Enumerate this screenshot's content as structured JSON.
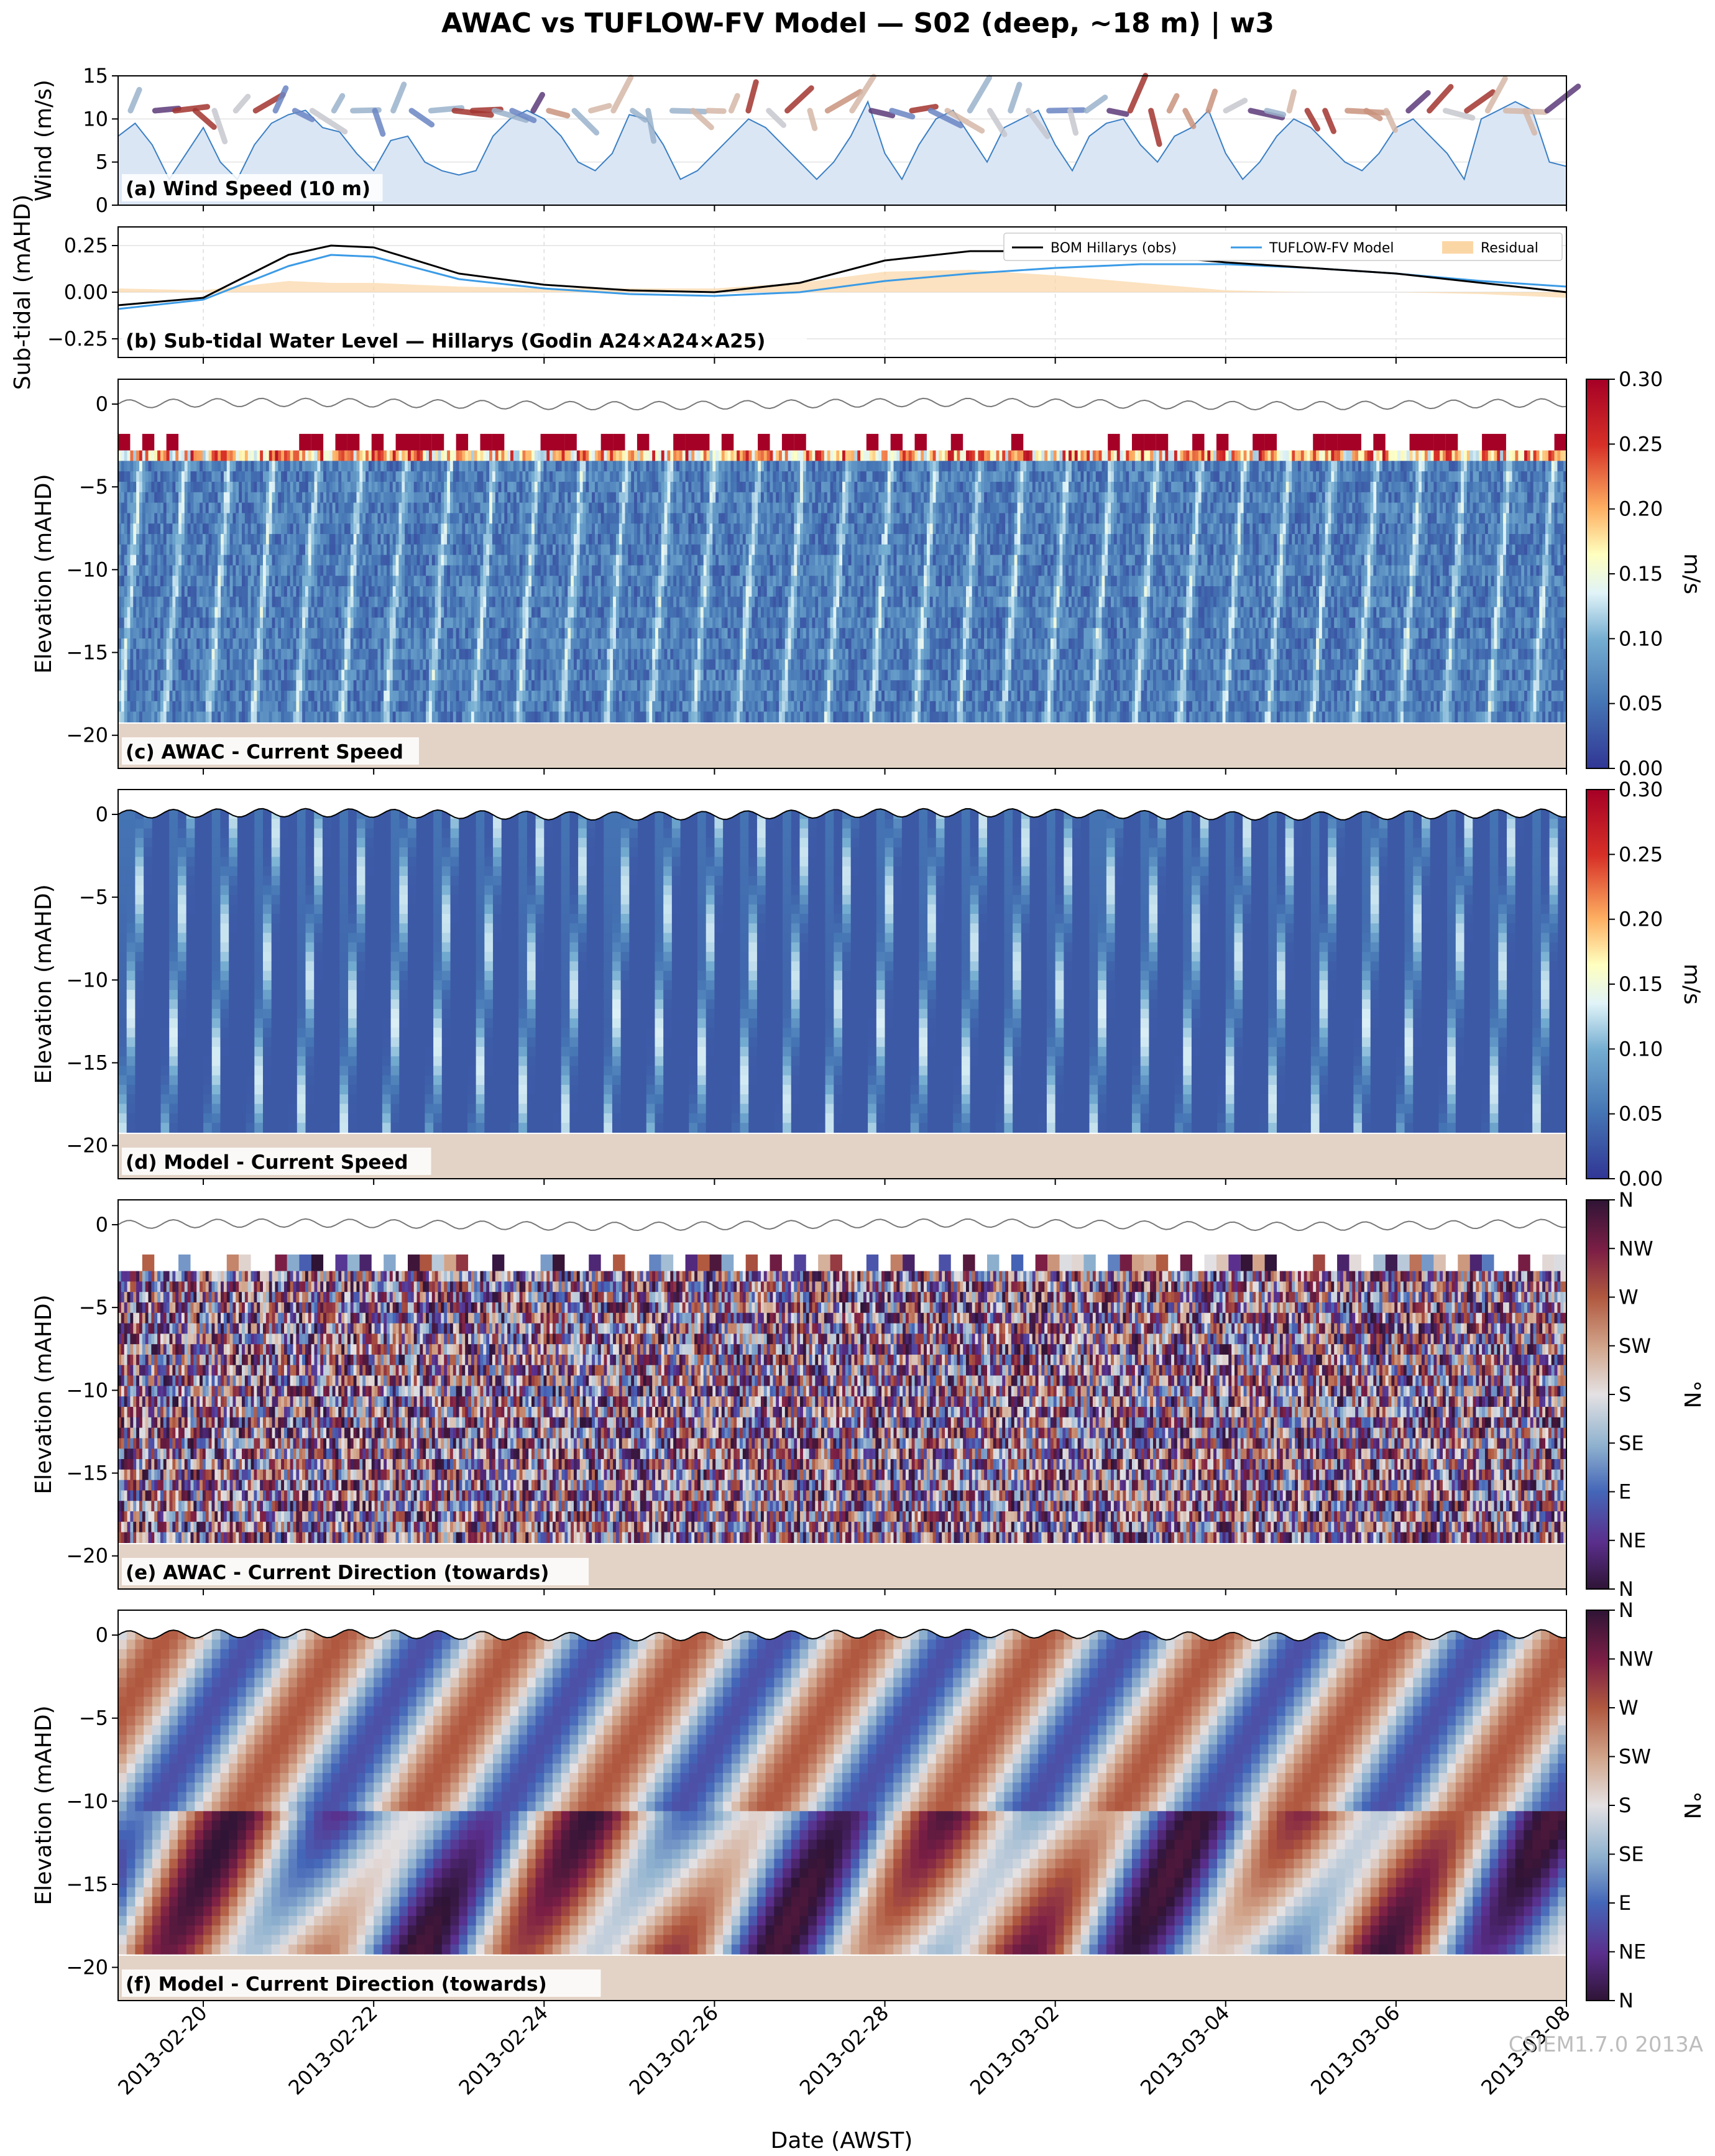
{
  "title": "AWAC vs TUFLOW-FV Model — S02 (deep, ~18 m) | w3",
  "x_axis": {
    "label": "Date (AWST)",
    "ticks": [
      "2013-02-20",
      "2013-02-22",
      "2013-02-24",
      "2013-02-26",
      "2013-02-28",
      "2013-03-02",
      "2013-03-04",
      "2013-03-06",
      "2013-03-08"
    ],
    "range": [
      "2013-02-19",
      "2013-03-08"
    ]
  },
  "watermark": "CSIEM1.7.0 2013A",
  "colors": {
    "wind_line": "#3a7fc4",
    "wind_fill": "#dbe6f5",
    "obs_line": "#000000",
    "model_line": "#3b9be6",
    "residual_fill": "#fbd6a5",
    "seabed": "#e3d3c6"
  },
  "chart_data": [
    {
      "id": "a",
      "type": "area",
      "label": "(a) Wind Speed (10 m)",
      "ylabel": "Wind (m/s)",
      "ylim": [
        0,
        15
      ],
      "yticks": [
        "0",
        "5",
        "10",
        "15"
      ],
      "series": [
        {
          "x_days": [
            0,
            0.2,
            0.4,
            0.6,
            0.8,
            1.0,
            1.2,
            1.4,
            1.6,
            1.8,
            2.0,
            2.2,
            2.4,
            2.6,
            2.8,
            3.0,
            3.2,
            3.4,
            3.6,
            3.8,
            4.0,
            4.2,
            4.4,
            4.6,
            4.8,
            5.0,
            5.2,
            5.4,
            5.6,
            5.8,
            6.0,
            6.2,
            6.4,
            6.6,
            6.8,
            7.0,
            7.2,
            7.4,
            7.6,
            7.8,
            8.0,
            8.2,
            8.4,
            8.6,
            8.8,
            9.0,
            9.2,
            9.4,
            9.6,
            9.8,
            10.0,
            10.2,
            10.4,
            10.6,
            10.8,
            11.0,
            11.2,
            11.4,
            11.6,
            11.8,
            12.0,
            12.2,
            12.4,
            12.6,
            12.8,
            13.0,
            13.2,
            13.4,
            13.6,
            13.8,
            14.0,
            14.2,
            14.4,
            14.6,
            14.8,
            15.0,
            15.2,
            15.4,
            15.6,
            15.8,
            16.0,
            16.2,
            16.4,
            16.6,
            16.8,
            17.0
          ],
          "values": [
            8,
            9.5,
            7,
            3,
            6,
            9,
            5,
            3,
            7,
            9.5,
            10.5,
            11,
            9,
            8.5,
            6,
            4,
            7.5,
            8,
            5,
            4,
            3.5,
            4,
            8,
            10,
            11,
            10,
            8,
            5,
            4,
            6,
            10.5,
            10,
            7,
            3,
            4,
            6,
            8,
            10,
            9,
            7,
            5,
            3,
            5,
            8,
            12,
            6,
            3,
            7,
            10,
            11,
            8,
            5,
            9,
            10,
            11,
            7,
            4,
            8,
            9.5,
            10,
            7,
            5,
            8,
            9,
            11,
            6,
            3,
            5,
            8,
            10,
            9,
            7,
            5,
            4,
            6,
            9,
            10,
            8,
            6,
            3,
            10,
            11,
            12,
            11,
            5,
            4.5
          ]
        }
      ]
    },
    {
      "id": "b",
      "type": "line",
      "label": "(b) Sub-tidal Water Level — Hillarys (Godin A24×A24×A25)",
      "ylabel": "Sub-tidal (mAHD)",
      "ylim": [
        -0.35,
        0.35
      ],
      "yticks": [
        "−0.25",
        "0.00",
        "0.25"
      ],
      "legend": [
        "BOM Hillarys (obs)",
        "TUFLOW-FV Model",
        "Residual"
      ],
      "legend_position": "top-right",
      "series": [
        {
          "name": "BOM Hillarys (obs)",
          "x_days": [
            0,
            1,
            2,
            2.5,
            3,
            4,
            5,
            6,
            7,
            8,
            9,
            10,
            11,
            12,
            13,
            14,
            15,
            16,
            17
          ],
          "values": [
            -0.07,
            -0.03,
            0.2,
            0.25,
            0.24,
            0.1,
            0.04,
            0.01,
            0.0,
            0.05,
            0.17,
            0.22,
            0.22,
            0.2,
            0.16,
            0.13,
            0.1,
            0.05,
            0.0
          ]
        },
        {
          "name": "TUFLOW-FV Model",
          "x_days": [
            0,
            1,
            2,
            2.5,
            3,
            4,
            5,
            6,
            7,
            8,
            9,
            10,
            11,
            12,
            13,
            14,
            15,
            16,
            17
          ],
          "values": [
            -0.09,
            -0.04,
            0.14,
            0.2,
            0.19,
            0.07,
            0.02,
            -0.01,
            -0.02,
            0.0,
            0.06,
            0.1,
            0.13,
            0.15,
            0.15,
            0.13,
            0.1,
            0.06,
            0.03
          ]
        }
      ]
    },
    {
      "id": "c",
      "type": "heatmap",
      "label": "(c) AWAC - Current Speed",
      "ylabel": "Elevation (mAHD)",
      "ylim": [
        -22,
        1.5
      ],
      "yticks": [
        "−20",
        "−15",
        "−10",
        "−5",
        "0"
      ],
      "colorbar": {
        "label": "m/s",
        "range": [
          0,
          0.3
        ],
        "ticks": [
          "0.00",
          "0.05",
          "0.10",
          "0.15",
          "0.20",
          "0.25",
          "0.30"
        ]
      }
    },
    {
      "id": "d",
      "type": "heatmap",
      "label": "(d) Model - Current Speed",
      "ylabel": "Elevation (mAHD)",
      "ylim": [
        -22,
        1.5
      ],
      "yticks": [
        "−20",
        "−15",
        "−10",
        "−5",
        "0"
      ],
      "colorbar": {
        "label": "m/s",
        "range": [
          0,
          0.3
        ],
        "ticks": [
          "0.00",
          "0.05",
          "0.10",
          "0.15",
          "0.20",
          "0.25",
          "0.30"
        ]
      }
    },
    {
      "id": "e",
      "type": "heatmap",
      "label": "(e) AWAC - Current Direction (towards)",
      "ylabel": "Elevation (mAHD)",
      "ylim": [
        -22,
        1.5
      ],
      "yticks": [
        "−20",
        "−15",
        "−10",
        "−5",
        "0"
      ],
      "colorbar": {
        "label": "°N",
        "ticks": [
          "N",
          "NE",
          "E",
          "SE",
          "S",
          "SW",
          "W",
          "NW",
          "N"
        ]
      }
    },
    {
      "id": "f",
      "type": "heatmap",
      "label": "(f) Model - Current Direction (towards)",
      "ylabel": "Elevation (mAHD)",
      "ylim": [
        -22,
        1.5
      ],
      "yticks": [
        "−20",
        "−15",
        "−10",
        "−5",
        "0"
      ],
      "colorbar": {
        "label": "°N",
        "ticks": [
          "N",
          "NE",
          "E",
          "SE",
          "S",
          "SW",
          "W",
          "NW",
          "N"
        ]
      }
    }
  ]
}
